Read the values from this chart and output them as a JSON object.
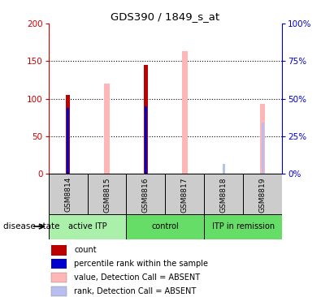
{
  "title": "GDS390 / 1849_s_at",
  "samples": [
    "GSM8814",
    "GSM8815",
    "GSM8816",
    "GSM8817",
    "GSM8818",
    "GSM8819"
  ],
  "group_spans": [
    {
      "label": "active ITP",
      "start": 0,
      "end": 2,
      "color": "#aaf0aa"
    },
    {
      "label": "control",
      "start": 2,
      "end": 4,
      "color": "#66dd66"
    },
    {
      "label": "ITP in remission",
      "start": 4,
      "end": 6,
      "color": "#66dd66"
    }
  ],
  "count_values": [
    105,
    0,
    145,
    0,
    0,
    0
  ],
  "percentile_rank_values": [
    88,
    0,
    90,
    0,
    0,
    0
  ],
  "absent_value_heights": [
    0,
    120,
    0,
    163,
    0,
    93
  ],
  "absent_rank_heights": [
    0,
    0,
    0,
    0,
    13,
    68
  ],
  "ylim_left": [
    0,
    200
  ],
  "ylim_right": [
    0,
    100
  ],
  "left_ticks": [
    0,
    50,
    100,
    150,
    200
  ],
  "right_ticks": [
    0,
    25,
    50,
    75,
    100
  ],
  "right_tick_labels": [
    "0%",
    "25%",
    "50%",
    "75%",
    "100%"
  ],
  "count_bar_width": 0.12,
  "absent_value_bar_width": 0.13,
  "absent_rank_bar_width": 0.07,
  "percentile_bar_width": 0.055,
  "count_color": "#bb0000",
  "percentile_color": "#0000cc",
  "absent_value_color": "#ffb6b6",
  "absent_rank_color": "#b8bef0",
  "bg_color": "#cccccc",
  "left_axis_color": "#cc0000",
  "right_axis_color": "#0000cc",
  "legend_items": [
    {
      "color": "#bb0000",
      "label": "count"
    },
    {
      "color": "#0000cc",
      "label": "percentile rank within the sample"
    },
    {
      "color": "#ffb6b6",
      "label": "value, Detection Call = ABSENT"
    },
    {
      "color": "#b8bef0",
      "label": "rank, Detection Call = ABSENT"
    }
  ]
}
